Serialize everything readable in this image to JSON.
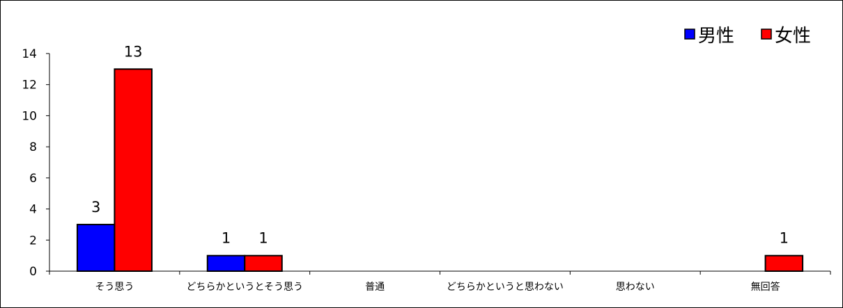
{
  "chart_data": {
    "type": "bar",
    "categories": [
      "そう思う",
      "どちらかというとそう思う",
      "普通",
      "どちらかというと思わない",
      "思わない",
      "無回答"
    ],
    "series": [
      {
        "name": "男性",
        "values": [
          3,
          1,
          0,
          0,
          0,
          0
        ],
        "color": "#0000ff"
      },
      {
        "name": "女性",
        "values": [
          13,
          1,
          0,
          0,
          0,
          1
        ],
        "color": "#ff0000"
      }
    ],
    "ylim": [
      0,
      14
    ],
    "yticks": [
      0,
      2,
      4,
      6,
      8,
      10,
      12,
      14
    ],
    "data_labels_shown": true,
    "legend_position": "top-right",
    "grid": false
  }
}
